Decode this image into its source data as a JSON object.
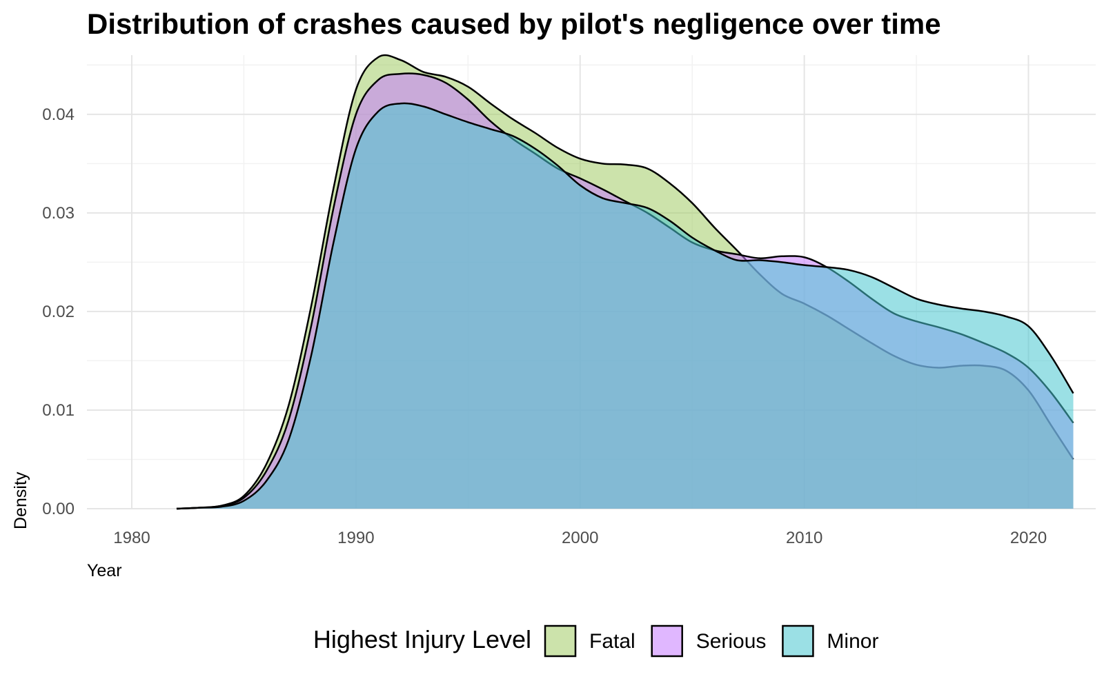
{
  "chart_data": {
    "type": "area",
    "subtype": "density",
    "title": "Distribution of crashes caused by pilot's negligence over time",
    "xlabel": "Year",
    "ylabel": "Density",
    "xlim": [
      1978,
      2023
    ],
    "ylim": [
      0,
      0.046
    ],
    "x_ticks": [
      "1980",
      "1990",
      "2000",
      "2010",
      "2020"
    ],
    "y_ticks": [
      "0.00",
      "0.01",
      "0.02",
      "0.03",
      "0.04"
    ],
    "grid": true,
    "legend": {
      "title": "Highest Injury Level",
      "position": "bottom"
    },
    "x": [
      1982,
      1983,
      1984,
      1985,
      1986,
      1987,
      1988,
      1989,
      1990,
      1991,
      1992,
      1993,
      1994,
      1995,
      1996,
      1997,
      1998,
      1999,
      2000,
      2001,
      2002,
      2003,
      2004,
      2005,
      2006,
      2007,
      2008,
      2009,
      2010,
      2011,
      2012,
      2013,
      2014,
      2015,
      2016,
      2017,
      2018,
      2019,
      2020,
      2021,
      2022
    ],
    "series": [
      {
        "name": "Fatal",
        "color": "#a3cc66",
        "values": [
          0.0,
          0.0001,
          0.0003,
          0.0013,
          0.0045,
          0.0105,
          0.0205,
          0.0325,
          0.0425,
          0.0458,
          0.0455,
          0.0443,
          0.0438,
          0.0428,
          0.0411,
          0.0395,
          0.0381,
          0.0366,
          0.0355,
          0.035,
          0.0349,
          0.0345,
          0.033,
          0.031,
          0.0285,
          0.0262,
          0.0238,
          0.0218,
          0.0208,
          0.0196,
          0.0182,
          0.0168,
          0.0155,
          0.0146,
          0.0143,
          0.0145,
          0.0145,
          0.014,
          0.012,
          0.0085,
          0.005
        ]
      },
      {
        "name": "Serious",
        "color": "#c77cff",
        "values": [
          0.0,
          0.0001,
          0.0003,
          0.0011,
          0.0038,
          0.009,
          0.0185,
          0.0305,
          0.04,
          0.0435,
          0.0441,
          0.044,
          0.0432,
          0.0415,
          0.0393,
          0.0375,
          0.036,
          0.0345,
          0.0335,
          0.0324,
          0.0312,
          0.03,
          0.0285,
          0.027,
          0.0262,
          0.0258,
          0.0254,
          0.0256,
          0.0255,
          0.0245,
          0.023,
          0.0213,
          0.0198,
          0.019,
          0.0184,
          0.0177,
          0.0168,
          0.0158,
          0.0143,
          0.0118,
          0.0087
        ]
      },
      {
        "name": "Minor",
        "color": "#48c7cf",
        "values": [
          0.0,
          0.0001,
          0.0002,
          0.0008,
          0.0028,
          0.007,
          0.0155,
          0.027,
          0.0365,
          0.0403,
          0.0411,
          0.0408,
          0.04,
          0.0392,
          0.0385,
          0.0378,
          0.0365,
          0.0348,
          0.0328,
          0.0315,
          0.031,
          0.0305,
          0.0292,
          0.0275,
          0.0262,
          0.0252,
          0.0252,
          0.025,
          0.0247,
          0.0245,
          0.0242,
          0.0235,
          0.0224,
          0.0213,
          0.0207,
          0.0203,
          0.02,
          0.0195,
          0.0185,
          0.0155,
          0.0117
        ]
      }
    ]
  }
}
